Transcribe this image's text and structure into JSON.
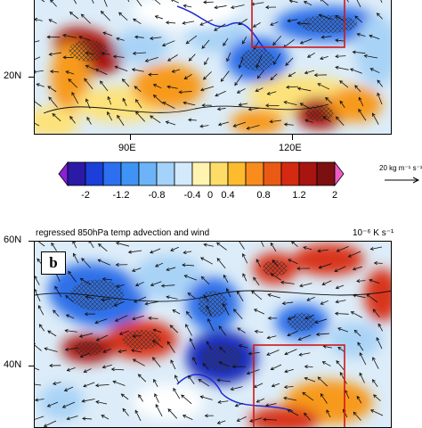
{
  "chart_data": [
    {
      "type": "heatmap",
      "panel_label": "",
      "xlabel": "",
      "ylabel": "",
      "x_ticks": [
        "90E",
        "120E"
      ],
      "y_ticks": [
        "20N"
      ],
      "colorbar": {
        "tick_labels": [
          "-2",
          "-1.2",
          "-0.8",
          "-0.4",
          "0",
          "0.4",
          "0.8",
          "1.2",
          "2"
        ],
        "colors": [
          "#8a20d8",
          "#2a1aa6",
          "#1b3fd8",
          "#2c6ff0",
          "#3f93f4",
          "#6cb4f7",
          "#a3d2fa",
          "#d2eafc",
          "#fff3b0",
          "#fedc68",
          "#fdbb2e",
          "#f98c1c",
          "#ea5a14",
          "#d42a12",
          "#a81410",
          "#7c1010",
          "#ee5cc4"
        ]
      },
      "vector_reference": "20 kg m⁻¹ s⁻¹"
    },
    {
      "type": "heatmap",
      "panel_label": "b",
      "title": "regressed 850hPa temp advection and wind",
      "units": "10⁻⁶ K s⁻¹",
      "xlabel": "",
      "ylabel": "",
      "y_ticks": [
        "60N",
        "40N"
      ]
    }
  ]
}
